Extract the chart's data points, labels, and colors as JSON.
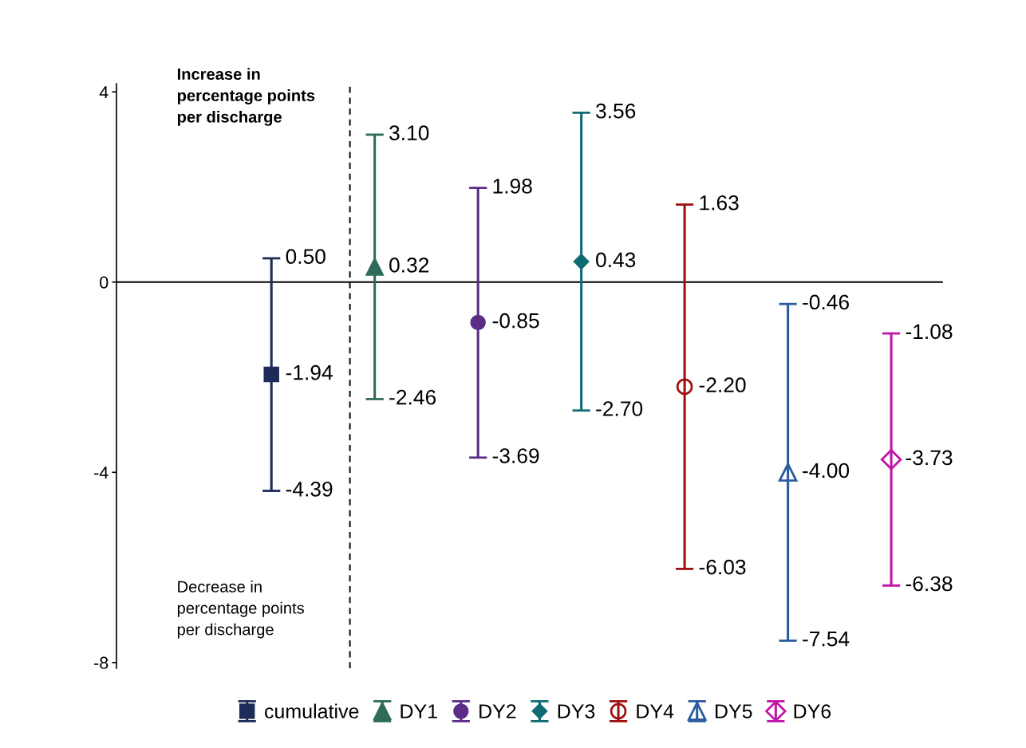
{
  "chart_data": {
    "type": "scatter",
    "categories": [
      null,
      null,
      null,
      null,
      null,
      null,
      null,
      null
    ],
    "series": [
      {
        "name": "cumulative",
        "color": "#1c2b57",
        "marker": "square",
        "values": [
          null,
          -1.94,
          null,
          null,
          null,
          null,
          null,
          null
        ],
        "value_labels": [
          null,
          "-1.94",
          null,
          null,
          null,
          null,
          null,
          null
        ],
        "errors": [
          null,
          [
            -4.39,
            0.5
          ],
          null,
          null,
          null,
          null,
          null,
          null
        ]
      },
      {
        "name": "DY1",
        "color": "#2f6b5a",
        "marker": "triangle",
        "values": [
          null,
          null,
          0.32,
          null,
          null,
          null,
          null,
          null
        ],
        "value_labels": [
          null,
          null,
          "0.32",
          null,
          null,
          null,
          null,
          null
        ],
        "errors": [
          null,
          null,
          [
            -2.46,
            3.1
          ],
          null,
          null,
          null,
          null,
          null
        ]
      },
      {
        "name": "DY2",
        "color": "#5c2d87",
        "marker": "circle",
        "values": [
          null,
          null,
          null,
          -0.85,
          null,
          null,
          null,
          null
        ],
        "value_labels": [
          null,
          null,
          null,
          "-0.85",
          null,
          null,
          null,
          null
        ],
        "errors": [
          null,
          null,
          null,
          [
            -3.69,
            1.98
          ],
          null,
          null,
          null,
          null
        ]
      },
      {
        "name": "DY3",
        "color": "#0f6b73",
        "marker": "diamond",
        "values": [
          null,
          null,
          null,
          null,
          0.43,
          null,
          null,
          null
        ],
        "value_labels": [
          null,
          null,
          null,
          null,
          "0.43",
          null,
          null,
          null
        ],
        "errors": [
          null,
          null,
          null,
          null,
          [
            -2.7,
            3.56
          ],
          null,
          null,
          null
        ]
      },
      {
        "name": "DY4",
        "color": "#a01010",
        "marker": "circle",
        "values": [
          null,
          null,
          null,
          null,
          null,
          -2.2,
          null,
          null
        ],
        "value_labels": [
          null,
          null,
          null,
          null,
          null,
          "-2.20",
          null,
          null
        ],
        "errors": [
          null,
          null,
          null,
          null,
          null,
          [
            -6.03,
            1.63
          ],
          null,
          null
        ]
      },
      {
        "name": "DY5",
        "color": "#2b5c9e",
        "marker": "triangle",
        "values": [
          null,
          null,
          null,
          null,
          null,
          null,
          -4.0,
          null
        ],
        "value_labels": [
          null,
          null,
          null,
          null,
          null,
          null,
          "-4.00",
          null
        ],
        "errors": [
          null,
          null,
          null,
          null,
          null,
          null,
          [
            -7.54,
            -0.46
          ],
          null
        ]
      },
      {
        "name": "DY6",
        "color": "#c015a8",
        "marker": "diamond",
        "values": [
          null,
          null,
          null,
          null,
          null,
          null,
          null,
          -3.73
        ],
        "value_labels": [
          null,
          null,
          null,
          null,
          null,
          null,
          null,
          "-3.73"
        ],
        "errors": [
          null,
          null,
          null,
          null,
          null,
          null,
          null,
          [
            -6.38,
            -1.08
          ]
        ]
      }
    ],
    "ylim": [
      -8.12,
      4.17
    ],
    "yticks": [
      -8,
      -4,
      0,
      4
    ],
    "tick_labels": "y",
    "ref_lines": [
      {
        "axis": "y",
        "value": 0,
        "color": "#000000",
        "line_style": "solid"
      }
    ],
    "annotations": [
      "Increase in\npercentage points\nper discharge",
      "Decrease in\npercentage points\nper discharge",
      "-4.39",
      "0.50",
      "-2.46",
      "3.10",
      "-3.69",
      "1.98",
      "-2.70",
      "3.56",
      "-6.03",
      "1.63",
      "-7.54",
      "-0.46",
      "-6.38",
      "-1.08"
    ],
    "legend": "bottom",
    "grid": false
  }
}
